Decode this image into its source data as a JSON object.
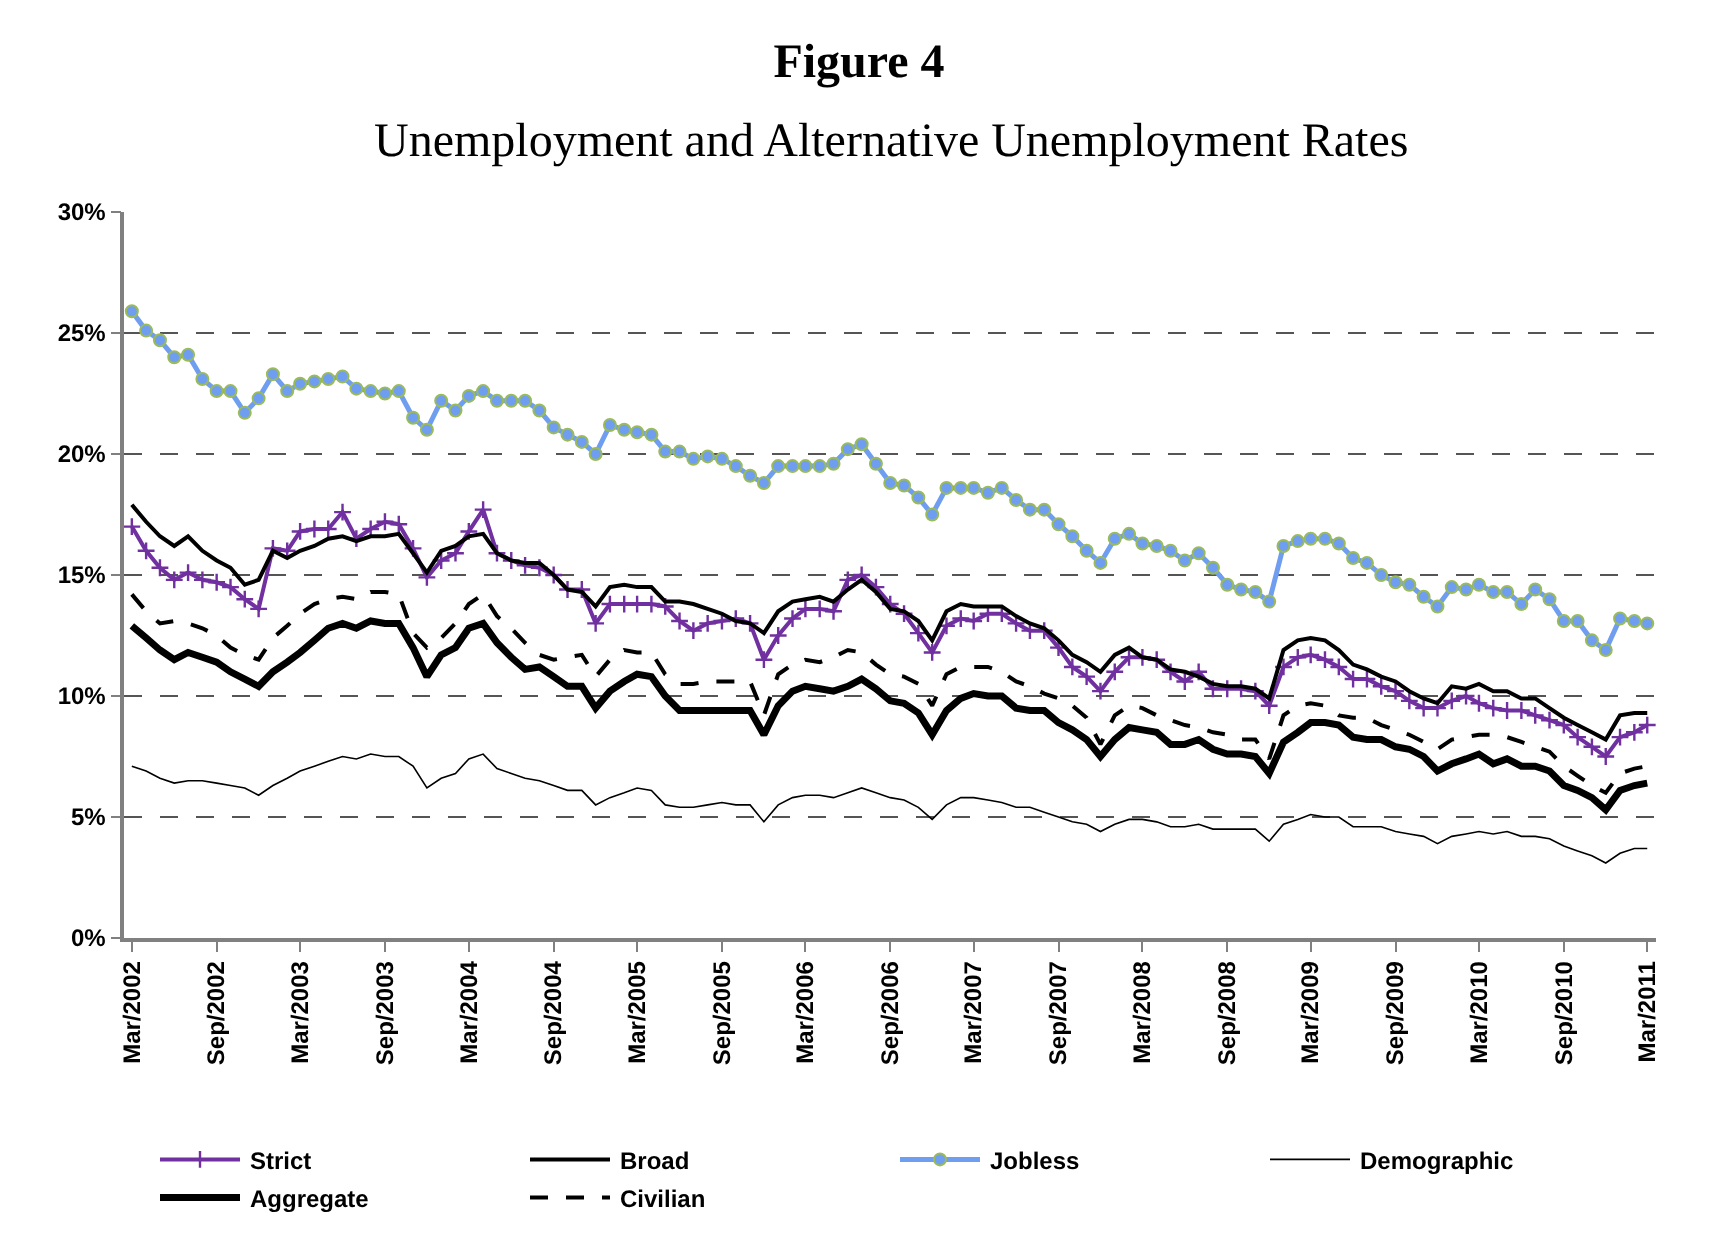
{
  "chart_data": {
    "type": "line",
    "title": "Figure 4",
    "subtitle": "Unemployment and Alternative Unemployment Rates",
    "x": [
      "2002-03",
      "2002-04",
      "2002-05",
      "2002-06",
      "2002-07",
      "2002-08",
      "2002-09",
      "2002-10",
      "2002-11",
      "2002-12",
      "2003-01",
      "2003-02",
      "2003-03",
      "2003-04",
      "2003-05",
      "2003-06",
      "2003-07",
      "2003-08",
      "2003-09",
      "2003-10",
      "2003-11",
      "2003-12",
      "2004-01",
      "2004-02",
      "2004-03",
      "2004-04",
      "2004-05",
      "2004-06",
      "2004-07",
      "2004-08",
      "2004-09",
      "2004-10",
      "2004-11",
      "2004-12",
      "2005-01",
      "2005-02",
      "2005-03",
      "2005-04",
      "2005-05",
      "2005-06",
      "2005-07",
      "2005-08",
      "2005-09",
      "2005-10",
      "2005-11",
      "2005-12",
      "2006-01",
      "2006-02",
      "2006-03",
      "2006-04",
      "2006-05",
      "2006-06",
      "2006-07",
      "2006-08",
      "2006-09",
      "2006-10",
      "2006-11",
      "2006-12",
      "2007-01",
      "2007-02",
      "2007-03",
      "2007-04",
      "2007-05",
      "2007-06",
      "2007-07",
      "2007-08",
      "2007-09",
      "2007-10",
      "2007-11",
      "2007-12",
      "2008-01",
      "2008-02",
      "2008-03",
      "2008-04",
      "2008-05",
      "2008-06",
      "2008-07",
      "2008-08",
      "2008-09",
      "2008-10",
      "2008-11",
      "2008-12",
      "2009-01",
      "2009-02",
      "2009-03",
      "2009-04",
      "2009-05",
      "2009-06",
      "2009-07",
      "2009-08",
      "2009-09",
      "2009-10",
      "2009-11",
      "2009-12",
      "2010-01",
      "2010-02",
      "2010-03",
      "2010-04",
      "2010-05",
      "2010-06",
      "2010-07",
      "2010-08",
      "2010-09",
      "2010-10",
      "2010-11",
      "2010-12",
      "2011-01",
      "2011-02",
      "2011-03"
    ],
    "series": [
      {
        "name": "Strict",
        "color": "#7030a0",
        "marker": "cross",
        "values": [
          17.0,
          16.0,
          15.3,
          14.8,
          15.1,
          14.8,
          14.7,
          14.5,
          14.0,
          13.6,
          16.1,
          16.0,
          16.8,
          16.9,
          16.9,
          17.6,
          16.5,
          16.9,
          17.2,
          17.1,
          16.1,
          14.9,
          15.6,
          15.9,
          16.8,
          17.7,
          15.9,
          15.6,
          15.4,
          15.3,
          15.0,
          14.4,
          14.4,
          13.0,
          13.8,
          13.8,
          13.8,
          13.8,
          13.7,
          13.1,
          12.7,
          13.0,
          13.1,
          13.2,
          13.0,
          11.5,
          12.5,
          13.2,
          13.6,
          13.6,
          13.5,
          14.8,
          15.0,
          14.5,
          13.8,
          13.4,
          12.6,
          11.8,
          12.9,
          13.2,
          13.1,
          13.4,
          13.4,
          13.0,
          12.7,
          12.7,
          12.0,
          11.2,
          10.8,
          10.2,
          11.0,
          11.6,
          11.6,
          11.5,
          11.0,
          10.6,
          11.0,
          10.3,
          10.3,
          10.3,
          10.2,
          9.6,
          11.2,
          11.6,
          11.7,
          11.5,
          11.2,
          10.7,
          10.7,
          10.4,
          10.2,
          9.8,
          9.5,
          9.5,
          9.8,
          10.0,
          9.7,
          9.5,
          9.4,
          9.4,
          9.2,
          9.0,
          8.8,
          8.3,
          7.9,
          7.5,
          8.3,
          8.5,
          8.8
        ]
      },
      {
        "name": "Broad",
        "color": "#000000",
        "values": [
          17.9,
          17.2,
          16.6,
          16.2,
          16.6,
          16.0,
          15.6,
          15.3,
          14.6,
          14.8,
          16.0,
          15.7,
          16.0,
          16.2,
          16.5,
          16.6,
          16.4,
          16.6,
          16.6,
          16.7,
          15.9,
          15.1,
          16.0,
          16.2,
          16.6,
          16.7,
          15.9,
          15.6,
          15.5,
          15.5,
          15.0,
          14.4,
          14.3,
          13.7,
          14.5,
          14.6,
          14.5,
          14.5,
          13.9,
          13.9,
          13.8,
          13.6,
          13.4,
          13.1,
          13.0,
          12.6,
          13.5,
          13.9,
          14.0,
          14.1,
          13.9,
          14.4,
          14.8,
          14.3,
          13.6,
          13.5,
          13.1,
          12.3,
          13.5,
          13.8,
          13.7,
          13.7,
          13.7,
          13.3,
          13.0,
          12.8,
          12.3,
          11.7,
          11.4,
          11.0,
          11.7,
          12.0,
          11.6,
          11.5,
          11.1,
          11.0,
          10.8,
          10.5,
          10.4,
          10.4,
          10.3,
          9.9,
          11.9,
          12.3,
          12.4,
          12.3,
          11.9,
          11.3,
          11.1,
          10.8,
          10.6,
          10.2,
          9.9,
          9.7,
          10.4,
          10.3,
          10.5,
          10.2,
          10.2,
          9.9,
          9.9,
          9.5,
          9.1,
          8.8,
          8.5,
          8.2,
          9.2,
          9.3,
          9.3
        ]
      },
      {
        "name": "Jobless",
        "color": "#6f9ef0",
        "marker": "circle",
        "values": [
          25.9,
          25.1,
          24.7,
          24.0,
          24.1,
          23.1,
          22.6,
          22.6,
          21.7,
          22.3,
          23.3,
          22.6,
          22.9,
          23.0,
          23.1,
          23.2,
          22.7,
          22.6,
          22.5,
          22.6,
          21.5,
          21.0,
          22.2,
          21.8,
          22.4,
          22.6,
          22.2,
          22.2,
          22.2,
          21.8,
          21.1,
          20.8,
          20.5,
          20.0,
          21.2,
          21.0,
          20.9,
          20.8,
          20.1,
          20.1,
          19.8,
          19.9,
          19.8,
          19.5,
          19.1,
          18.8,
          19.5,
          19.5,
          19.5,
          19.5,
          19.6,
          20.2,
          20.4,
          19.6,
          18.8,
          18.7,
          18.2,
          17.5,
          18.6,
          18.6,
          18.6,
          18.4,
          18.6,
          18.1,
          17.7,
          17.7,
          17.1,
          16.6,
          16.0,
          15.5,
          16.5,
          16.7,
          16.3,
          16.2,
          16.0,
          15.6,
          15.9,
          15.3,
          14.6,
          14.4,
          14.3,
          13.9,
          16.2,
          16.4,
          16.5,
          16.5,
          16.3,
          15.7,
          15.5,
          15.0,
          14.7,
          14.6,
          14.1,
          13.7,
          14.5,
          14.4,
          14.6,
          14.3,
          14.3,
          13.8,
          14.4,
          14.0,
          13.1,
          13.1,
          12.3,
          11.9,
          13.2,
          13.1,
          13.0
        ]
      },
      {
        "name": "Demographic",
        "color": "#000000",
        "values": [
          7.1,
          6.9,
          6.6,
          6.4,
          6.5,
          6.5,
          6.4,
          6.3,
          6.2,
          5.9,
          6.3,
          6.6,
          6.9,
          7.1,
          7.3,
          7.5,
          7.4,
          7.6,
          7.5,
          7.5,
          7.1,
          6.2,
          6.6,
          6.8,
          7.4,
          7.6,
          7.0,
          6.8,
          6.6,
          6.5,
          6.3,
          6.1,
          6.1,
          5.5,
          5.8,
          6.0,
          6.2,
          6.1,
          5.5,
          5.4,
          5.4,
          5.5,
          5.6,
          5.5,
          5.5,
          4.8,
          5.5,
          5.8,
          5.9,
          5.9,
          5.8,
          6.0,
          6.2,
          6.0,
          5.8,
          5.7,
          5.4,
          4.9,
          5.5,
          5.8,
          5.8,
          5.7,
          5.6,
          5.4,
          5.4,
          5.2,
          5.0,
          4.8,
          4.7,
          4.4,
          4.7,
          4.9,
          4.9,
          4.8,
          4.6,
          4.6,
          4.7,
          4.5,
          4.5,
          4.5,
          4.5,
          4.0,
          4.7,
          4.9,
          5.1,
          5.0,
          5.0,
          4.6,
          4.6,
          4.6,
          4.4,
          4.3,
          4.2,
          3.9,
          4.2,
          4.3,
          4.4,
          4.3,
          4.4,
          4.2,
          4.2,
          4.1,
          3.8,
          3.6,
          3.4,
          3.1,
          3.5,
          3.7,
          3.7
        ]
      },
      {
        "name": "Aggregate",
        "color": "#000000",
        "values": [
          12.9,
          12.4,
          11.9,
          11.5,
          11.8,
          11.6,
          11.4,
          11.0,
          10.7,
          10.4,
          11.0,
          11.4,
          11.8,
          12.3,
          12.8,
          13.0,
          12.8,
          13.1,
          13.0,
          13.0,
          12.0,
          10.8,
          11.7,
          12.0,
          12.8,
          13.0,
          12.2,
          11.6,
          11.1,
          11.2,
          10.8,
          10.4,
          10.4,
          9.5,
          10.2,
          10.6,
          10.9,
          10.8,
          10.0,
          9.4,
          9.4,
          9.4,
          9.4,
          9.4,
          9.4,
          8.4,
          9.6,
          10.2,
          10.4,
          10.3,
          10.2,
          10.4,
          10.7,
          10.3,
          9.8,
          9.7,
          9.3,
          8.4,
          9.4,
          9.9,
          10.1,
          10.0,
          10.0,
          9.5,
          9.4,
          9.4,
          8.9,
          8.6,
          8.2,
          7.5,
          8.2,
          8.7,
          8.6,
          8.5,
          8.0,
          8.0,
          8.2,
          7.8,
          7.6,
          7.6,
          7.5,
          6.8,
          8.1,
          8.5,
          8.9,
          8.9,
          8.8,
          8.3,
          8.2,
          8.2,
          7.9,
          7.8,
          7.5,
          6.9,
          7.2,
          7.4,
          7.6,
          7.2,
          7.4,
          7.1,
          7.1,
          6.9,
          6.3,
          6.1,
          5.8,
          5.3,
          6.1,
          6.3,
          6.4
        ]
      },
      {
        "name": "Civilian",
        "color": "#000000",
        "line_style": "dashed",
        "values": [
          14.2,
          13.5,
          13.0,
          13.1,
          13.0,
          12.8,
          12.5,
          12.0,
          11.7,
          11.5,
          12.4,
          12.9,
          13.4,
          13.8,
          14.0,
          14.1,
          14.0,
          14.3,
          14.3,
          14.2,
          12.6,
          12.0,
          12.4,
          13.0,
          13.8,
          14.2,
          13.3,
          12.8,
          12.2,
          11.7,
          11.5,
          11.6,
          11.7,
          10.8,
          11.5,
          11.9,
          11.8,
          11.8,
          10.9,
          10.5,
          10.5,
          10.6,
          10.6,
          10.6,
          10.6,
          9.2,
          10.9,
          11.3,
          11.5,
          11.4,
          11.6,
          11.9,
          11.8,
          11.3,
          10.9,
          10.8,
          10.5,
          9.6,
          10.9,
          11.2,
          11.2,
          11.2,
          11.0,
          10.6,
          10.4,
          10.1,
          9.9,
          9.6,
          9.1,
          8.0,
          9.2,
          9.6,
          9.5,
          9.2,
          9.0,
          8.8,
          8.7,
          8.5,
          8.4,
          8.2,
          8.2,
          7.4,
          9.2,
          9.6,
          9.7,
          9.6,
          9.2,
          9.1,
          9.1,
          8.8,
          8.6,
          8.4,
          8.1,
          7.8,
          8.2,
          8.3,
          8.4,
          8.4,
          8.3,
          8.1,
          7.9,
          7.7,
          7.1,
          6.7,
          6.3,
          6.0,
          6.8,
          7.0,
          7.1
        ]
      }
    ],
    "xlim": [
      "2002-02-12",
      "2011-03-20"
    ],
    "xticks": [
      {
        "value": "2002-03",
        "label": "Mar/2002"
      },
      {
        "value": "2002-09",
        "label": "Sep/2002"
      },
      {
        "value": "2003-03",
        "label": "Mar/2003"
      },
      {
        "value": "2003-09",
        "label": "Sep/2003"
      },
      {
        "value": "2004-03",
        "label": "Mar/2004"
      },
      {
        "value": "2004-09",
        "label": "Sep/2004"
      },
      {
        "value": "2005-03",
        "label": "Mar/2005"
      },
      {
        "value": "2005-09",
        "label": "Sep/2005"
      },
      {
        "value": "2006-03",
        "label": "Mar/2006"
      },
      {
        "value": "2006-09",
        "label": "Sep/2006"
      },
      {
        "value": "2007-03",
        "label": "Mar/2007"
      },
      {
        "value": "2007-09",
        "label": "Sep/2007"
      },
      {
        "value": "2008-03",
        "label": "Mar/2008"
      },
      {
        "value": "2008-09",
        "label": "Sep/2008"
      },
      {
        "value": "2009-03",
        "label": "Mar/2009"
      },
      {
        "value": "2009-09",
        "label": "Sep/2009"
      },
      {
        "value": "2010-03",
        "label": "Mar/2010"
      },
      {
        "value": "2010-09",
        "label": "Sep/2010"
      },
      {
        "value": "2011-03",
        "label": "Mar/2011"
      }
    ],
    "ylim": [
      0,
      30
    ],
    "yticks": [
      {
        "value": 0,
        "label": "0%"
      },
      {
        "value": 5,
        "label": "5%"
      },
      {
        "value": 10,
        "label": "10%"
      },
      {
        "value": 15,
        "label": "15%"
      },
      {
        "value": 20,
        "label": "20%"
      },
      {
        "value": 25,
        "label": "25%"
      },
      {
        "value": 30,
        "label": "30%"
      }
    ],
    "grid": "y",
    "legend": "bottom"
  }
}
